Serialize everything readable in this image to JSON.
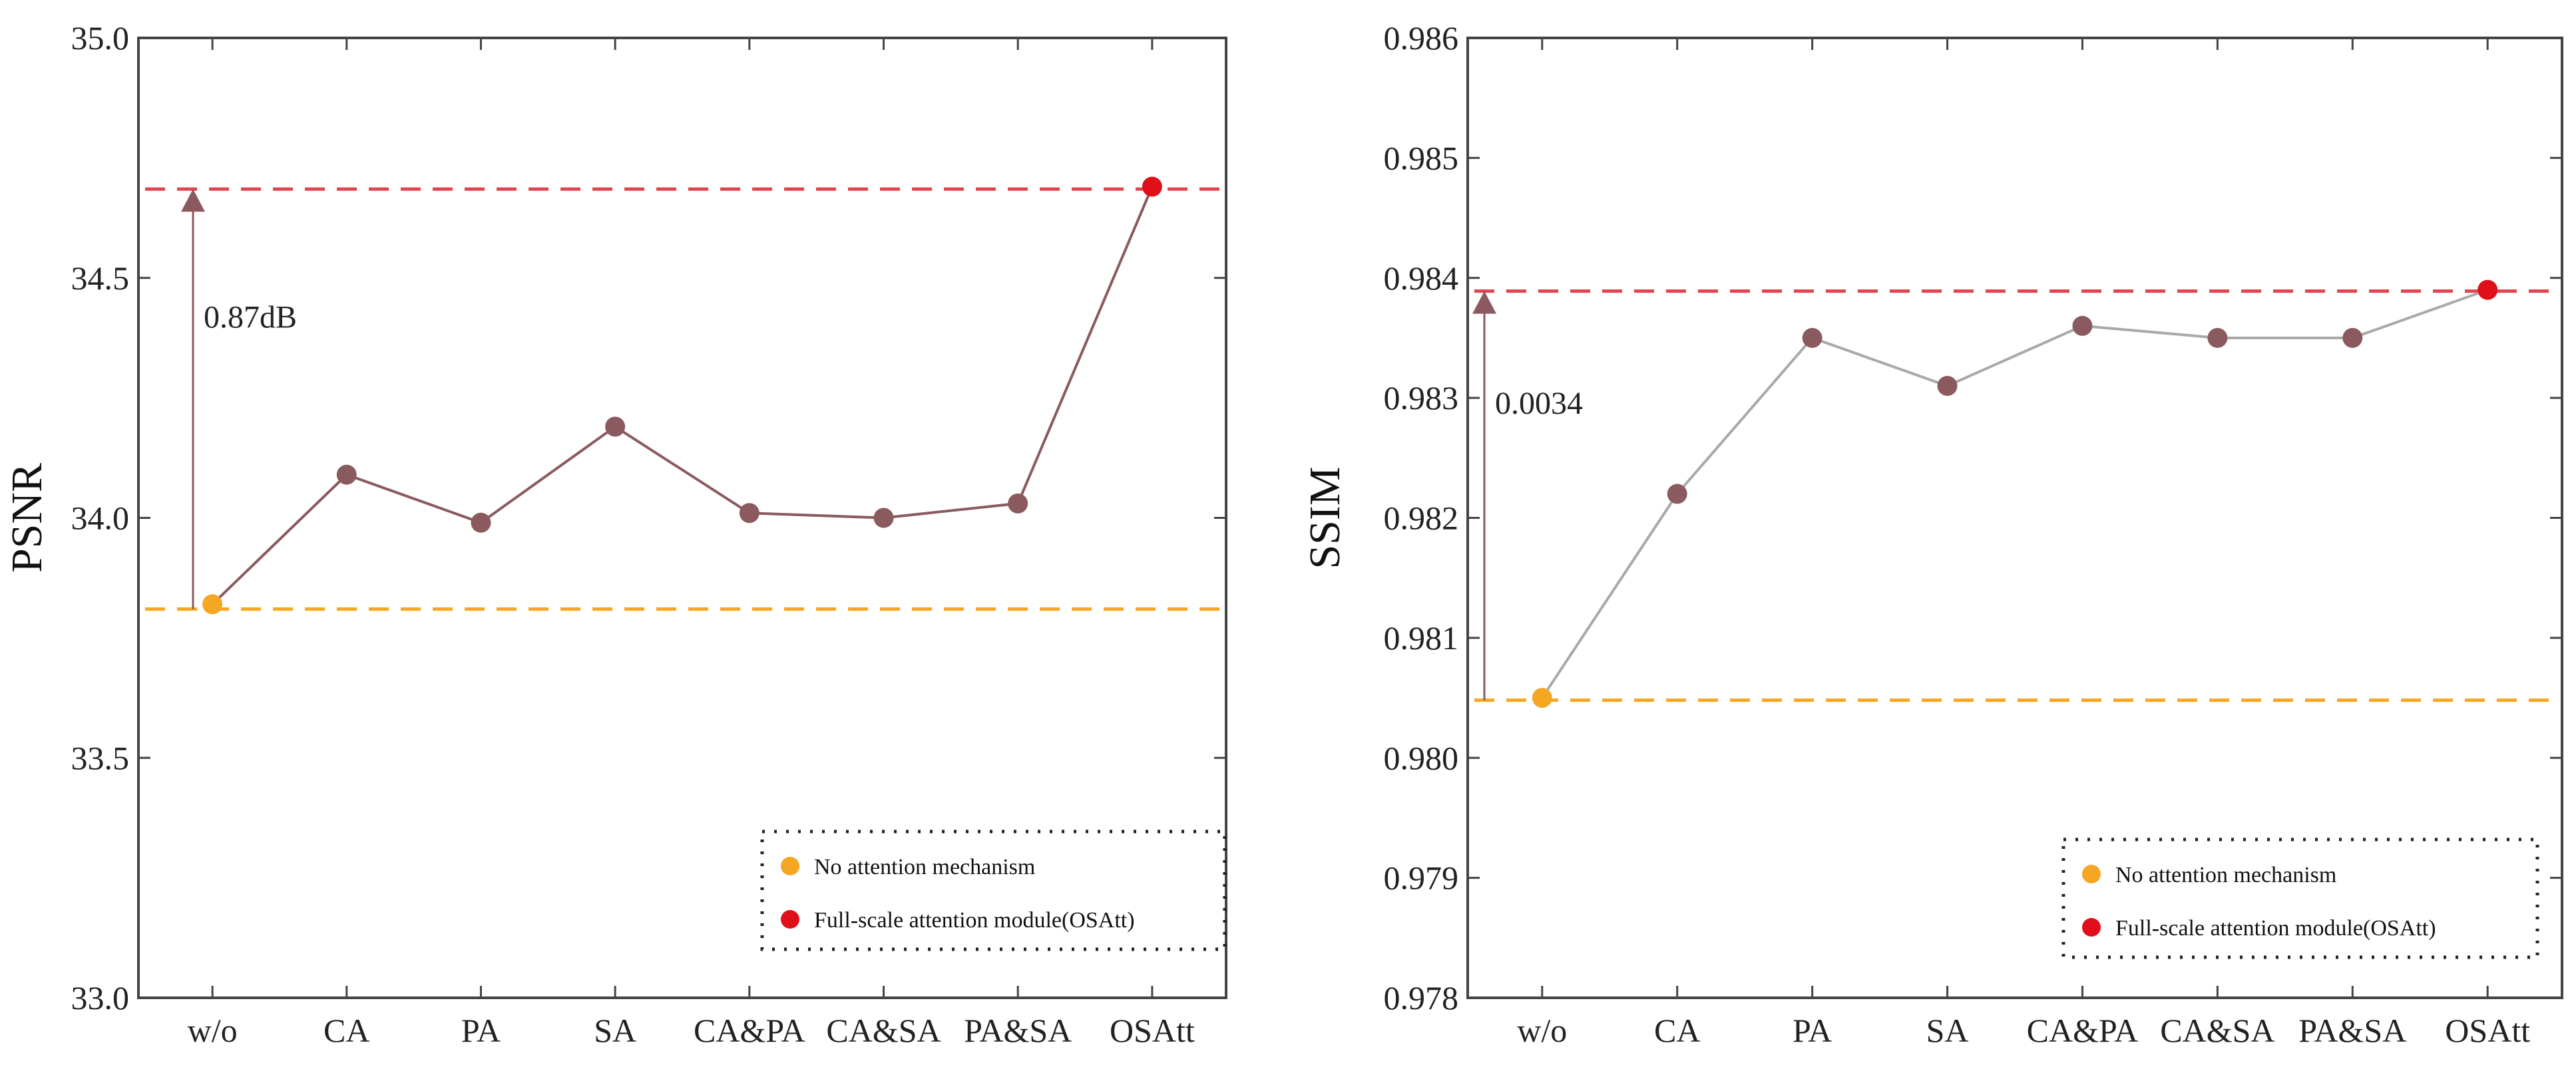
{
  "chart_data": [
    {
      "type": "line",
      "ylabel": "PSNR",
      "xlabel": "",
      "categories": [
        "w/o",
        "CA",
        "PA",
        "SA",
        "CA&PA",
        "CA&SA",
        "PA&SA",
        "OSAtt"
      ],
      "values": [
        33.82,
        34.09,
        33.99,
        34.19,
        34.01,
        34.0,
        34.03,
        34.69
      ],
      "ylim": [
        33.0,
        35.0
      ],
      "yticks": [
        "33.0",
        "33.5",
        "34.0",
        "34.5",
        "35.0"
      ],
      "ytick_values": [
        33.0,
        33.5,
        34.0,
        34.5,
        35.0
      ],
      "baseline_value": 33.81,
      "best_value": 34.685,
      "annotation": "0.87dB",
      "line_color": "#8b5a5e",
      "point_color": "#8b5a5e",
      "baseline_color": "#f5a623",
      "best_color": "#e0101a",
      "best_line_color": "#e0454f",
      "legend": {
        "placement": "bottom-right",
        "entries": [
          {
            "label": "No attention mechanism",
            "color": "#f5a623"
          },
          {
            "label": "Full-scale attention module(OSAtt)",
            "color": "#e0101a"
          }
        ]
      }
    },
    {
      "type": "line",
      "ylabel": "SSIM",
      "xlabel": "",
      "categories": [
        "w/o",
        "CA",
        "PA",
        "SA",
        "CA&PA",
        "CA&SA",
        "PA&SA",
        "OSAtt"
      ],
      "values": [
        0.9805,
        0.9822,
        0.9835,
        0.9831,
        0.9836,
        0.9835,
        0.9835,
        0.9839
      ],
      "ylim": [
        0.978,
        0.986
      ],
      "yticks": [
        "0.978",
        "0.979",
        "0.980",
        "0.981",
        "0.982",
        "0.983",
        "0.984",
        "0.985",
        "0.986"
      ],
      "ytick_values": [
        0.978,
        0.979,
        0.98,
        0.981,
        0.982,
        0.983,
        0.984,
        0.985,
        0.986
      ],
      "baseline_value": 0.98048,
      "best_value": 0.98389,
      "annotation": "0.0034",
      "line_color": "#a9a9a9",
      "point_color": "#8b5a5e",
      "baseline_color": "#f5a623",
      "best_color": "#e0101a",
      "best_line_color": "#e0454f",
      "legend": {
        "placement": "bottom-right",
        "entries": [
          {
            "label": "No attention mechanism",
            "color": "#f5a623"
          },
          {
            "label": "Full-scale attention module(OSAtt)",
            "color": "#e0101a"
          }
        ]
      }
    }
  ]
}
